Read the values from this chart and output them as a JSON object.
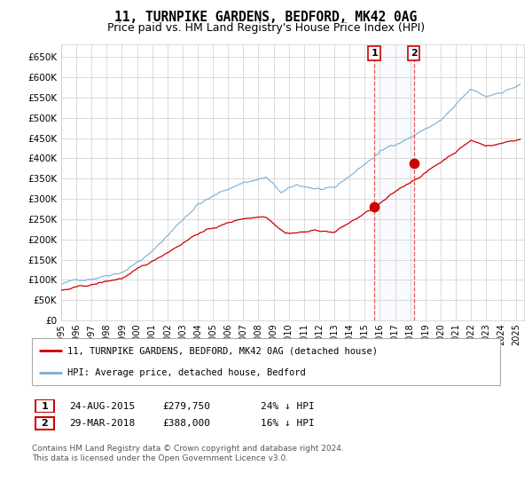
{
  "title": "11, TURNPIKE GARDENS, BEDFORD, MK42 0AG",
  "subtitle": "Price paid vs. HM Land Registry's House Price Index (HPI)",
  "yticks": [
    0,
    50000,
    100000,
    150000,
    200000,
    250000,
    300000,
    350000,
    400000,
    450000,
    500000,
    550000,
    600000,
    650000
  ],
  "ylim": [
    0,
    680000
  ],
  "xlim_start": 1995.0,
  "xlim_end": 2025.5,
  "hpi_color": "#7aadd4",
  "price_color": "#cc0000",
  "purchase1_date": 2015.63,
  "purchase1_price": 279750,
  "purchase2_date": 2018.23,
  "purchase2_price": 388000,
  "purchase1_label": "1",
  "purchase2_label": "2",
  "legend_line1": "11, TURNPIKE GARDENS, BEDFORD, MK42 0AG (detached house)",
  "legend_line2": "HPI: Average price, detached house, Bedford",
  "table_row1": [
    "1",
    "24-AUG-2015",
    "£279,750",
    "24% ↓ HPI"
  ],
  "table_row2": [
    "2",
    "29-MAR-2018",
    "£388,000",
    "16% ↓ HPI"
  ],
  "footnote": "Contains HM Land Registry data © Crown copyright and database right 2024.\nThis data is licensed under the Open Government Licence v3.0.",
  "title_fontsize": 10.5,
  "subtitle_fontsize": 9,
  "axis_fontsize": 7.5,
  "background_color": "#ffffff"
}
